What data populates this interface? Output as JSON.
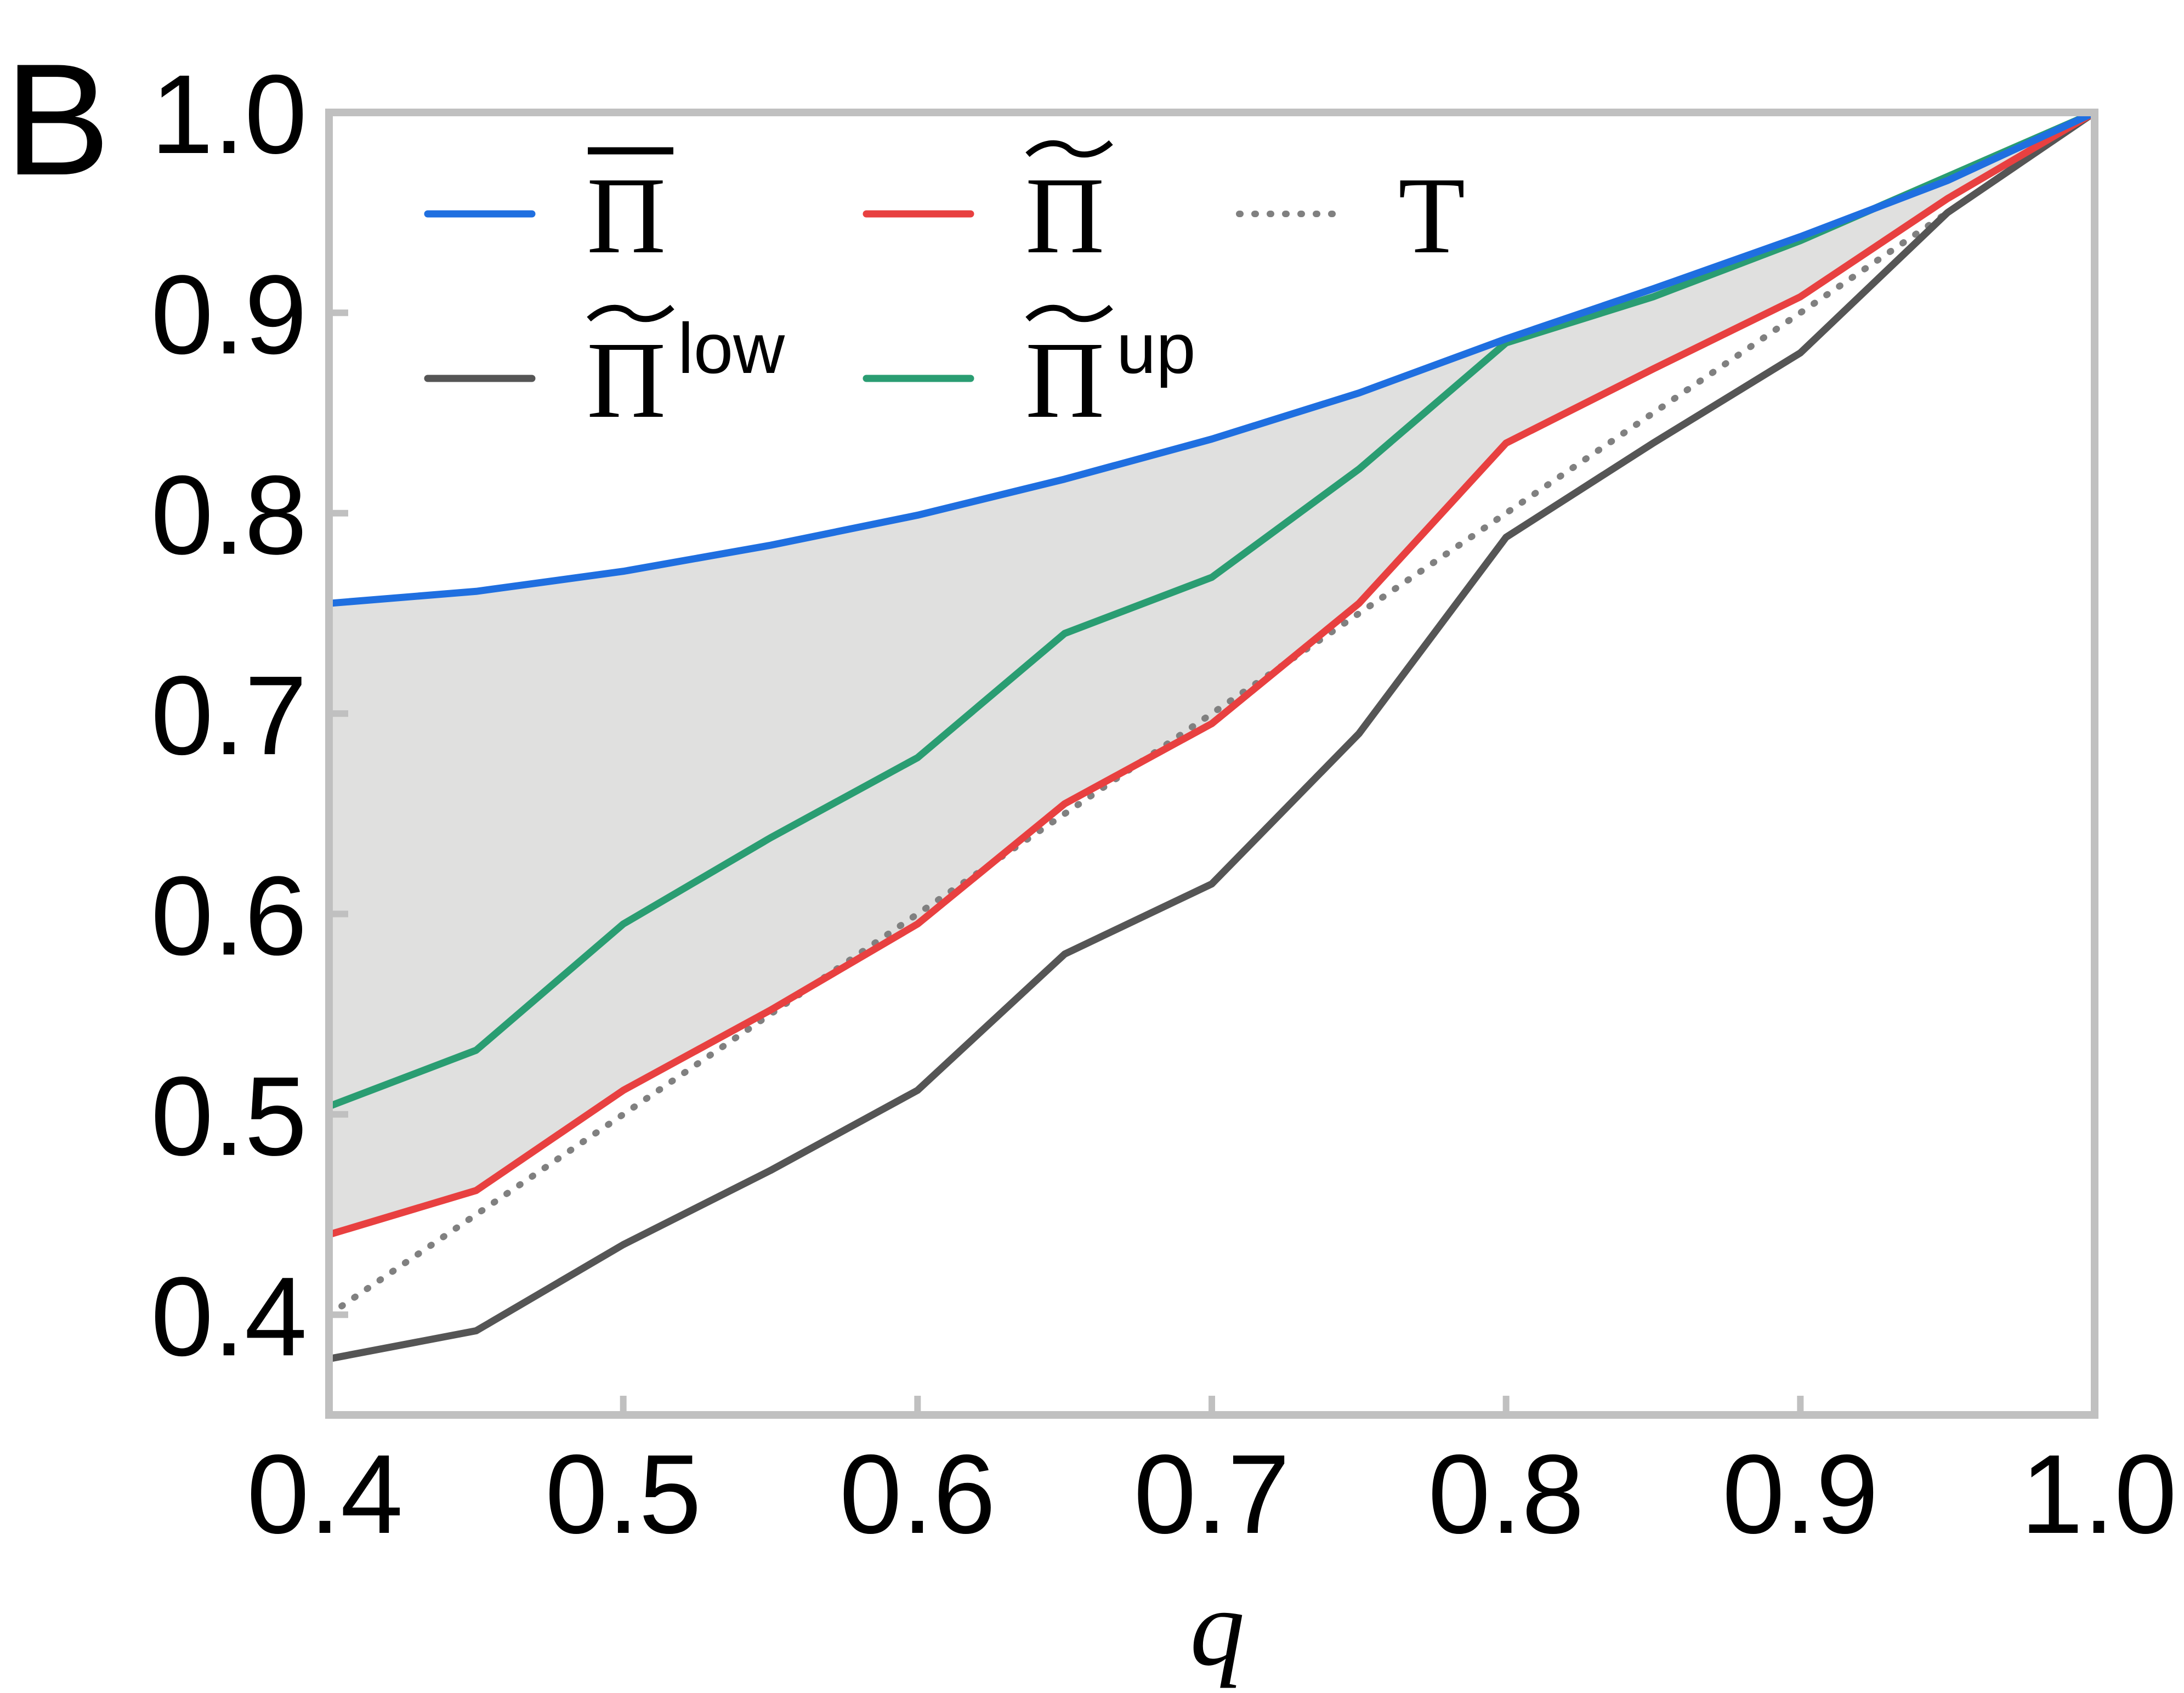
{
  "chart_data": {
    "type": "line",
    "panel_label": "B",
    "xlabel": "q",
    "ylabel": "",
    "xlim": [
      0.4,
      1.0
    ],
    "ylim": [
      0.35,
      1.0
    ],
    "x_ticks": [
      "0.4",
      "0.5",
      "0.6",
      "0.7",
      "0.8",
      "0.9",
      "1.0"
    ],
    "y_ticks": [
      "0.4",
      "0.5",
      "0.6",
      "0.7",
      "0.8",
      "0.9",
      "1.0"
    ],
    "grid": false,
    "legend_position": "top-left",
    "shaded_region": {
      "between": [
        "Π̄",
        "Π̃"
      ],
      "color": "#e0e0df"
    },
    "series": [
      {
        "name": "Π̄",
        "base": "Π",
        "accent": "bar",
        "superscript": "",
        "color": "#1f6fe0",
        "dash": "solid",
        "x": [
          0.4,
          0.45,
          0.5,
          0.55,
          0.6,
          0.65,
          0.7,
          0.75,
          0.8,
          0.85,
          0.9,
          0.95,
          1.0
        ],
        "y": [
          0.755,
          0.761,
          0.771,
          0.784,
          0.799,
          0.817,
          0.837,
          0.86,
          0.887,
          0.912,
          0.938,
          0.966,
          1.0
        ]
      },
      {
        "name": "Π̃",
        "base": "Π",
        "accent": "tilde",
        "superscript": "",
        "color": "#e84040",
        "dash": "solid",
        "x": [
          0.4,
          0.45,
          0.5,
          0.55,
          0.6,
          0.65,
          0.7,
          0.75,
          0.8,
          0.85,
          0.9,
          0.95,
          1.0
        ],
        "y": [
          0.44,
          0.462,
          0.512,
          0.552,
          0.595,
          0.655,
          0.695,
          0.755,
          0.835,
          0.872,
          0.908,
          0.957,
          1.0
        ]
      },
      {
        "name": "T",
        "base": "T",
        "accent": "none",
        "superscript": "",
        "color": "#808080",
        "dash": "dotted",
        "x": [
          0.4,
          0.45,
          0.5,
          0.55,
          0.6,
          0.65,
          0.7,
          0.75,
          0.8,
          0.85,
          0.9,
          0.95,
          1.0
        ],
        "y": [
          0.4,
          0.45,
          0.5,
          0.55,
          0.6,
          0.65,
          0.7,
          0.75,
          0.8,
          0.85,
          0.9,
          0.95,
          1.0
        ]
      },
      {
        "name": "Π̃low",
        "base": "Π",
        "accent": "tilde",
        "superscript": "low",
        "color": "#555555",
        "dash": "solid",
        "x": [
          0.4,
          0.45,
          0.5,
          0.55,
          0.6,
          0.65,
          0.7,
          0.75,
          0.8,
          0.85,
          0.9,
          0.95,
          1.0
        ],
        "y": [
          0.378,
          0.392,
          0.435,
          0.472,
          0.512,
          0.58,
          0.615,
          0.69,
          0.788,
          0.835,
          0.88,
          0.95,
          1.0
        ]
      },
      {
        "name": "Π̃up",
        "base": "Π",
        "accent": "tilde",
        "superscript": "up",
        "color": "#2a9d72",
        "dash": "solid",
        "x": [
          0.4,
          0.45,
          0.5,
          0.55,
          0.6,
          0.65,
          0.7,
          0.75,
          0.8,
          0.85,
          0.9,
          0.95,
          1.0
        ],
        "y": [
          0.504,
          0.532,
          0.595,
          0.638,
          0.678,
          0.74,
          0.768,
          0.822,
          0.885,
          0.908,
          0.936,
          0.968,
          1.0
        ]
      }
    ]
  }
}
